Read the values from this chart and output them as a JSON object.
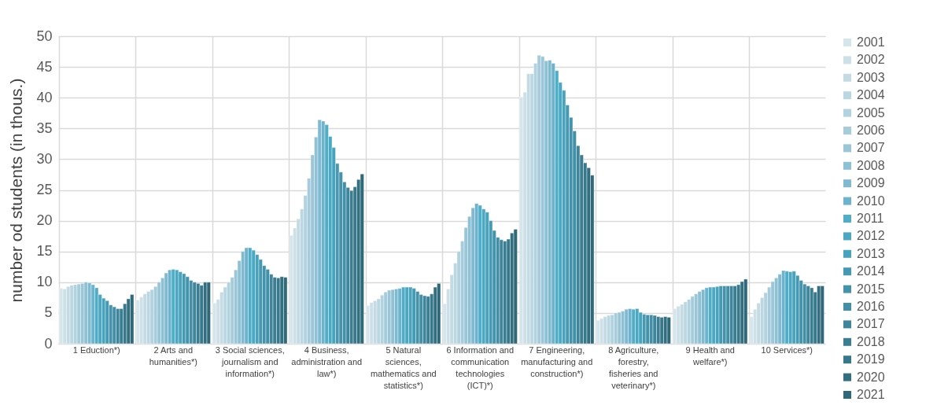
{
  "chart_data": {
    "type": "bar",
    "ylabel": "number od students (in thous.)",
    "categories": [
      "1 Eduction*)",
      "2 Arts and humanities*)",
      "3 Social sciences, journalism and information*)",
      "4 Business, administration and law*)",
      "5 Natural sciences, mathematics and statistics*)",
      "6 Information and communication technologies (ICT)*)",
      "7 Engineering, manufacturing and construction*)",
      "8 Agriculture, forestry, fisheries and veterinary*)",
      "9 Health and welfare*)",
      "10 Services*)"
    ],
    "ylim": [
      0,
      50
    ],
    "yticks": [
      0,
      5,
      10,
      15,
      20,
      25,
      30,
      35,
      40,
      45,
      50
    ],
    "grid": true,
    "legend": "right",
    "series": [
      {
        "name": "2001",
        "color": "#d5e5ec",
        "values": [
          9.0,
          7.1,
          6.6,
          17.6,
          6.2,
          6.5,
          40.1,
          3.8,
          5.7,
          4.4
        ]
      },
      {
        "name": "2002",
        "color": "#cde0e8",
        "values": [
          8.9,
          7.6,
          7.2,
          18.8,
          6.7,
          8.9,
          40.9,
          4.1,
          6.1,
          5.6
        ]
      },
      {
        "name": "2003",
        "color": "#c4dbe4",
        "values": [
          9.3,
          8.1,
          8.4,
          20.3,
          7.0,
          11.2,
          43.9,
          4.4,
          6.4,
          6.6
        ]
      },
      {
        "name": "2004",
        "color": "#bbd7e2",
        "values": [
          9.5,
          8.5,
          9.2,
          21.9,
          7.3,
          13.1,
          43.9,
          4.6,
          6.8,
          7.5
        ]
      },
      {
        "name": "2005",
        "color": "#b1d2df",
        "values": [
          9.6,
          8.8,
          10.0,
          24.1,
          7.9,
          15.0,
          45.6,
          4.7,
          7.2,
          8.3
        ]
      },
      {
        "name": "2006",
        "color": "#a6ccdc",
        "values": [
          9.7,
          9.3,
          10.8,
          26.9,
          8.4,
          16.7,
          46.9,
          5.0,
          7.7,
          9.2
        ]
      },
      {
        "name": "2007",
        "color": "#9bc6d8",
        "values": [
          9.8,
          10.0,
          12.0,
          30.7,
          8.7,
          18.9,
          46.7,
          5.1,
          8.1,
          10.1
        ]
      },
      {
        "name": "2008",
        "color": "#8fc1d5",
        "values": [
          10.0,
          10.7,
          13.5,
          33.6,
          8.8,
          20.7,
          46.0,
          5.3,
          8.5,
          10.7
        ]
      },
      {
        "name": "2009",
        "color": "#80bad1",
        "values": [
          9.9,
          11.5,
          15.0,
          36.4,
          8.9,
          22.1,
          46.1,
          5.6,
          8.8,
          11.3
        ]
      },
      {
        "name": "2010",
        "color": "#6db3cd",
        "values": [
          9.6,
          12.0,
          15.6,
          36.2,
          9.0,
          22.8,
          45.6,
          5.7,
          9.1,
          11.9
        ]
      },
      {
        "name": "2011",
        "color": "#4eaec8",
        "values": [
          9.1,
          12.1,
          15.6,
          35.6,
          9.2,
          22.5,
          44.4,
          5.6,
          9.2,
          11.8
        ]
      },
      {
        "name": "2012",
        "color": "#4aa8c2",
        "values": [
          8.0,
          12.0,
          15.2,
          33.7,
          9.2,
          21.9,
          42.5,
          5.7,
          9.2,
          11.7
        ]
      },
      {
        "name": "2013",
        "color": "#48a3bc",
        "values": [
          7.4,
          11.7,
          14.5,
          31.9,
          9.2,
          21.4,
          41.2,
          5.1,
          9.3,
          11.8
        ]
      },
      {
        "name": "2014",
        "color": "#4699b2",
        "values": [
          7.0,
          11.4,
          13.7,
          29.3,
          9.0,
          20.0,
          38.8,
          4.8,
          9.4,
          11.1
        ]
      },
      {
        "name": "2015",
        "color": "#4493ab",
        "values": [
          6.3,
          10.9,
          12.7,
          27.9,
          8.5,
          18.4,
          36.8,
          4.7,
          9.4,
          10.3
        ]
      },
      {
        "name": "2016",
        "color": "#4290a7",
        "values": [
          6.0,
          10.3,
          12.1,
          26.3,
          8.0,
          17.3,
          34.6,
          4.7,
          9.4,
          9.7
        ]
      },
      {
        "name": "2017",
        "color": "#3f869c",
        "values": [
          5.7,
          10.0,
          11.3,
          25.4,
          7.8,
          16.9,
          32.2,
          4.6,
          9.4,
          9.4
        ]
      },
      {
        "name": "2018",
        "color": "#3b7e92",
        "values": [
          5.7,
          9.8,
          10.8,
          24.9,
          7.7,
          16.7,
          30.7,
          4.4,
          9.4,
          9.1
        ]
      },
      {
        "name": "2019",
        "color": "#37798b",
        "values": [
          6.5,
          9.5,
          10.7,
          25.5,
          8.1,
          17.0,
          29.4,
          4.3,
          9.6,
          8.4
        ]
      },
      {
        "name": "2020",
        "color": "#326f80",
        "values": [
          7.3,
          10.0,
          10.9,
          26.7,
          9.2,
          18.0,
          28.6,
          4.4,
          10.1,
          9.4
        ]
      },
      {
        "name": "2021",
        "color": "#2f6879",
        "values": [
          8.0,
          10.0,
          10.8,
          27.6,
          9.8,
          18.6,
          27.4,
          4.3,
          10.5,
          9.4
        ]
      }
    ]
  }
}
